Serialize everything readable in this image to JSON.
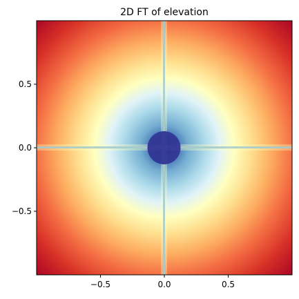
{
  "chart_data": {
    "type": "heatmap",
    "title": "2D FT of elevation",
    "xlabel": "",
    "ylabel": "",
    "xlim": [
      -1,
      1
    ],
    "ylim": [
      -1,
      1
    ],
    "x_ticks": [
      -0.5,
      0.0,
      0.5
    ],
    "y_ticks": [
      0.5,
      0.0,
      -0.5
    ],
    "x_tick_labels": [
      "−0.5",
      "0.0",
      "0.5"
    ],
    "y_tick_labels": [
      "0.5",
      "0.0",
      "−0.5"
    ],
    "grid": false,
    "colormap": "RdYlBu",
    "colormap_stops": [
      "#a50026",
      "#d73027",
      "#f46d43",
      "#fdae61",
      "#fee090",
      "#ffffbf",
      "#e0f3f8",
      "#abd9e9",
      "#74add1",
      "#4575b4",
      "#313695"
    ],
    "pattern": "radial decay from center with bright horizontal and vertical axis lines"
  }
}
